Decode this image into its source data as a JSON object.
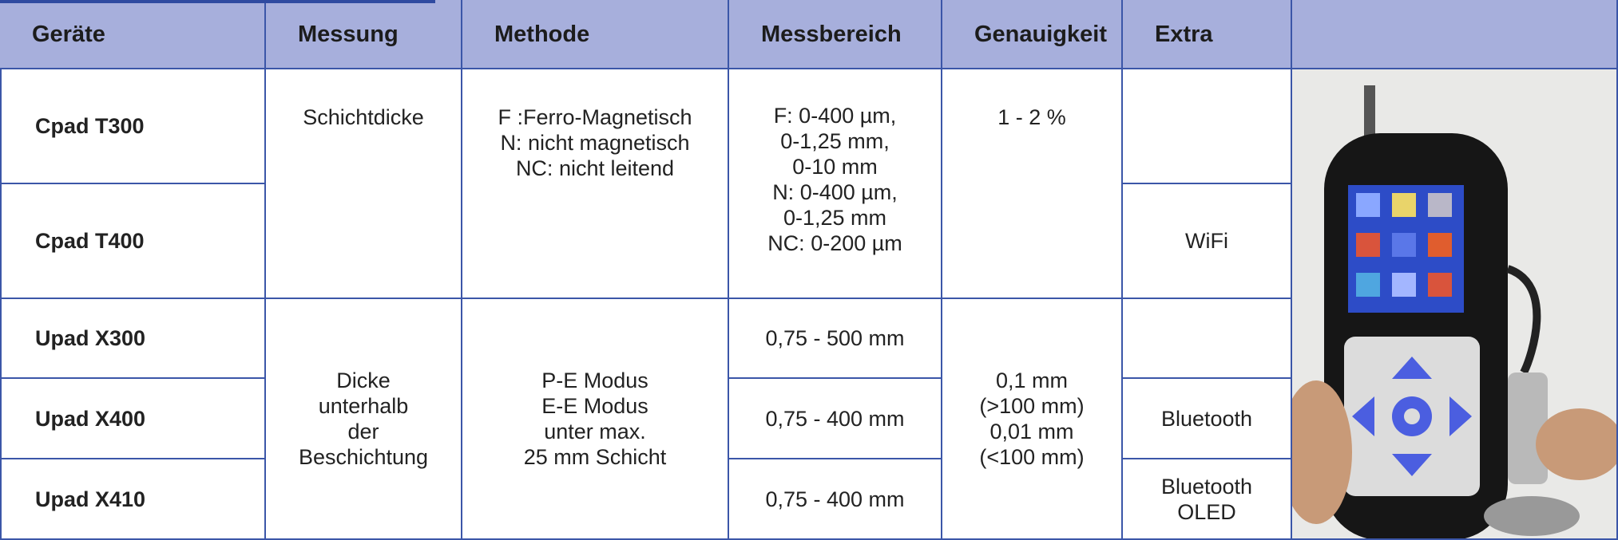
{
  "table": {
    "columns": [
      "Geräte",
      "Messung",
      "Methode",
      "Messbereich",
      "Genauigkeit",
      "Extra"
    ],
    "devices": [
      "Cpad T300",
      "Cpad T400",
      "Upad X300",
      "Upad X400",
      "Upad X410"
    ],
    "coating": {
      "messung": [
        "Schichtdicke"
      ],
      "methode": [
        "F :Ferro-Magnetisch",
        "N: nicht magnetisch",
        "NC: nicht leitend"
      ],
      "messbereich": [
        "F: 0-400 µm,",
        "0-1,25 mm,",
        "0-10 mm",
        "N: 0-400 µm,",
        "0-1,25 mm",
        "NC: 0-200 µm"
      ],
      "genauigkeit": [
        "1 - 2 %"
      ]
    },
    "ultrasonic": {
      "messung": [
        "Dicke",
        "unterhalb",
        "der",
        "Beschichtung"
      ],
      "methode": [
        "P-E Modus",
        "E-E Modus",
        "unter max.",
        "25 mm Schicht"
      ],
      "messbereich": [
        [
          "0,75 - 500 mm"
        ],
        [
          "0,75 - 400 mm"
        ],
        [
          "0,75 - 400 mm"
        ]
      ],
      "genauigkeit": [
        "0,1 mm",
        "(>100 mm)",
        "0,01 mm",
        "(<100 mm)"
      ]
    },
    "extra": [
      [],
      [
        "WiFi"
      ],
      [],
      [
        "Bluetooth"
      ],
      [
        "Bluetooth",
        "OLED"
      ]
    ]
  }
}
